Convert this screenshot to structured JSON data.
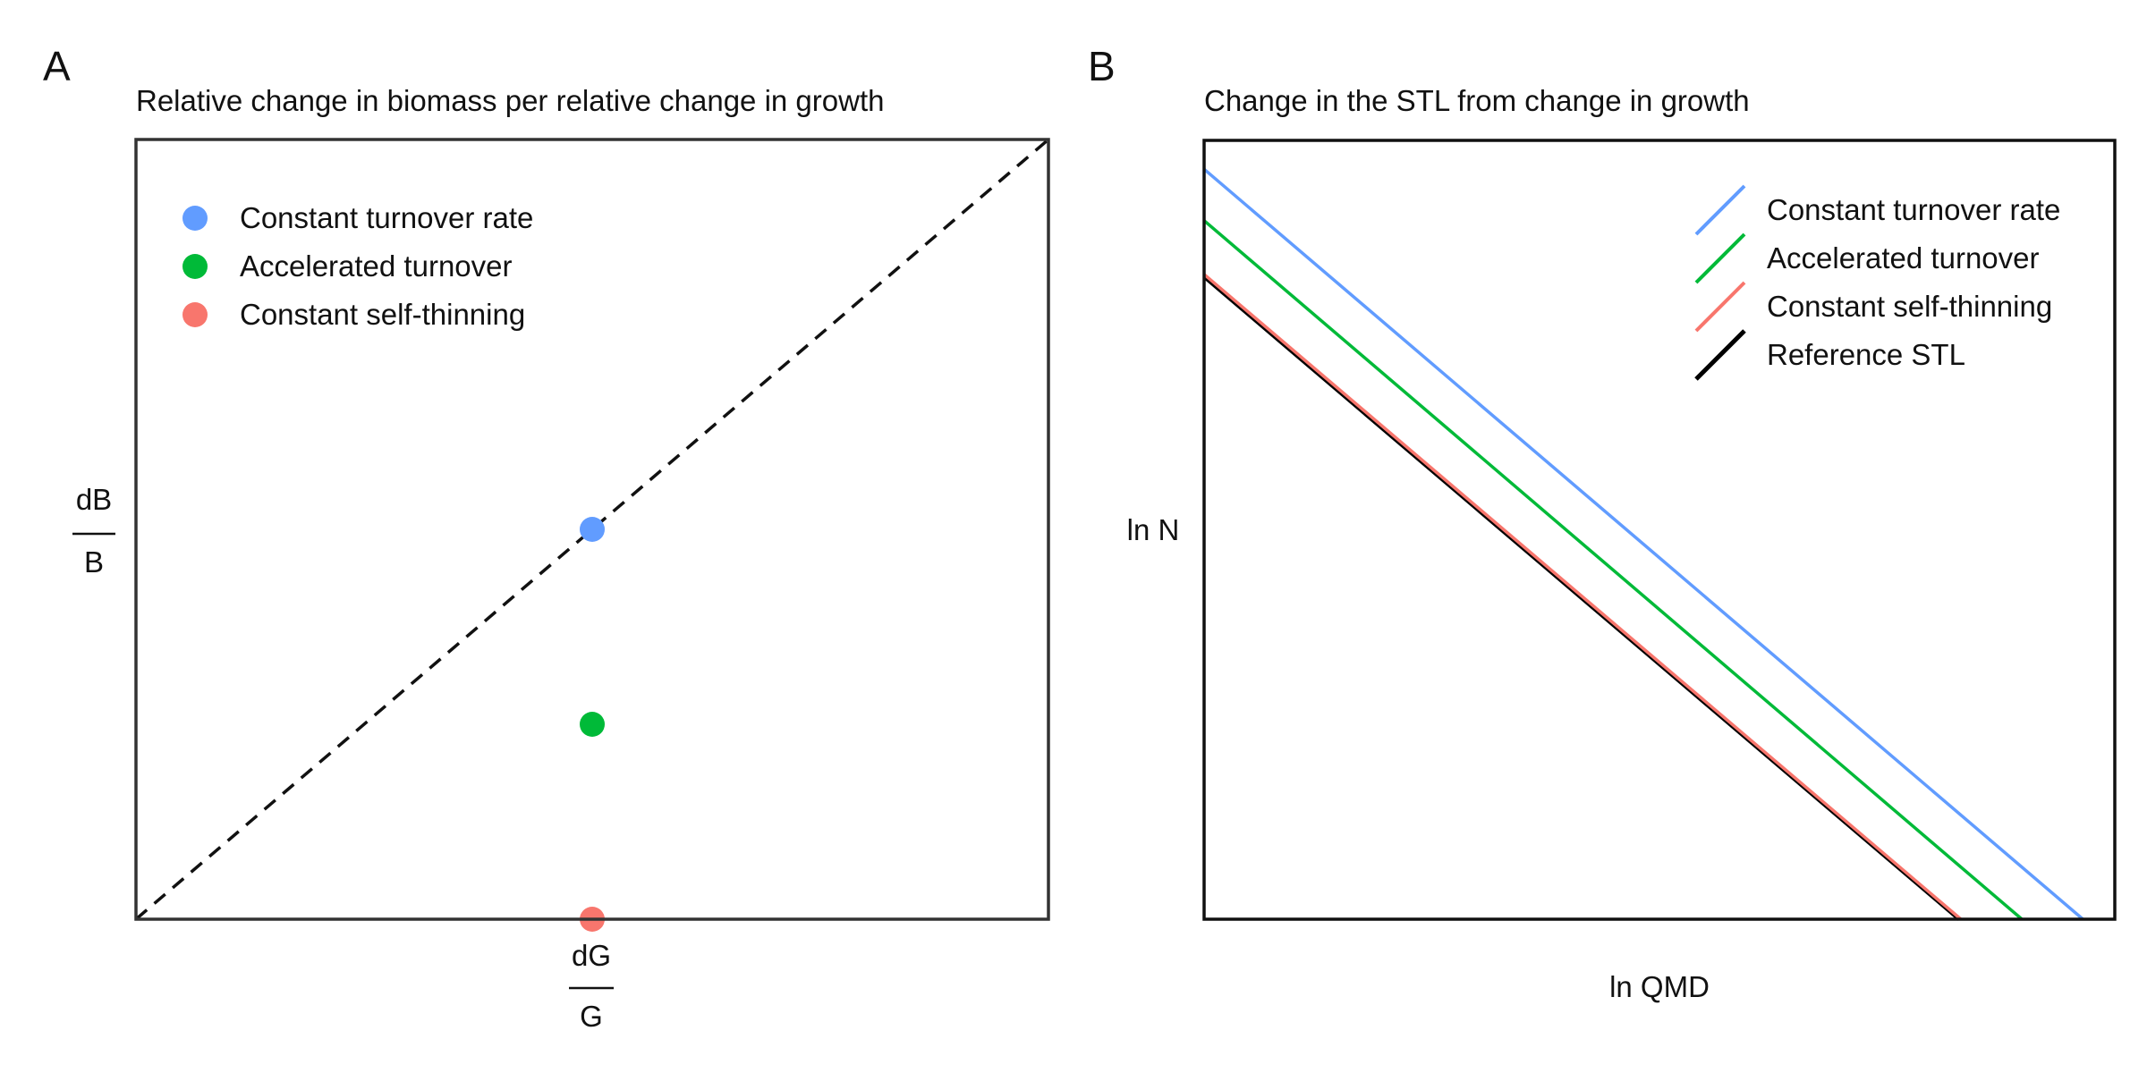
{
  "chart_data": [
    {
      "panel_label": "A",
      "type": "scatter",
      "title": "Relative change in biomass per relative change in growth",
      "xlabel": {
        "numerator": "dG",
        "denominator": "G"
      },
      "ylabel": {
        "numerator": "dB",
        "denominator": "B"
      },
      "xlim": [
        0,
        1
      ],
      "ylim": [
        0,
        1
      ],
      "reference_line": {
        "style": "dashed",
        "color": "#111111",
        "from": [
          0,
          0
        ],
        "to": [
          1,
          1
        ]
      },
      "grid": false,
      "legend_position": "top-left",
      "series": [
        {
          "name": "Constant turnover rate",
          "color": "#619CFF",
          "x": 0.5,
          "y": 0.5
        },
        {
          "name": "Accelerated turnover",
          "color": "#00BA38",
          "x": 0.5,
          "y": 0.25
        },
        {
          "name": "Constant self-thinning",
          "color": "#F8766D",
          "x": 0.5,
          "y": 0.0
        }
      ]
    },
    {
      "panel_label": "B",
      "type": "line",
      "title": "Change in the STL from change in growth",
      "xlabel": "ln QMD",
      "ylabel": "ln N",
      "xlim": [
        0,
        1
      ],
      "ylim": [
        0,
        1
      ],
      "grid": false,
      "legend_position": "top-right",
      "series": [
        {
          "name": "Constant turnover rate",
          "color": "#619CFF",
          "x": [
            0,
            0.965
          ],
          "y": [
            0.963,
            0.0
          ]
        },
        {
          "name": "Accelerated turnover",
          "color": "#00BA38",
          "x": [
            0,
            0.898
          ],
          "y": [
            0.897,
            0.0
          ]
        },
        {
          "name": "Constant self-thinning",
          "color": "#F8766D",
          "x": [
            0,
            0.831
          ],
          "y": [
            0.828,
            0.0
          ]
        },
        {
          "name": "Reference STL",
          "color": "#000000",
          "x": [
            0,
            0.829
          ],
          "y": [
            0.825,
            0.0
          ]
        }
      ]
    }
  ]
}
